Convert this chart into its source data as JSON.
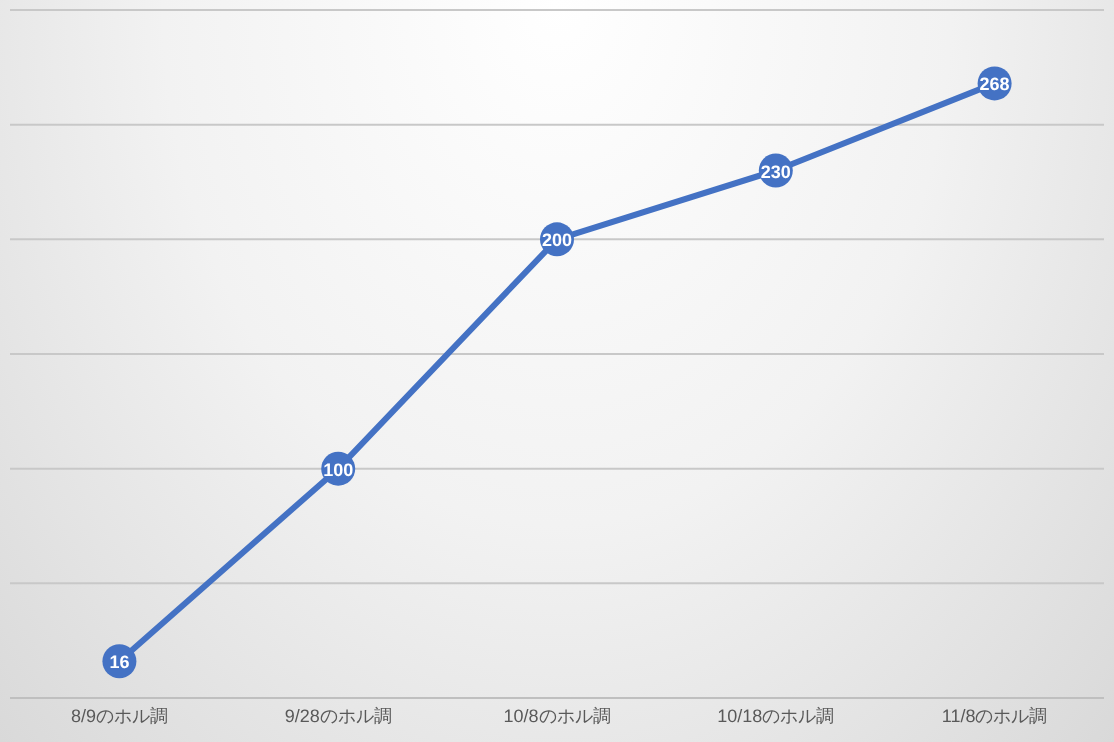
{
  "chart_data": {
    "type": "line",
    "categories": [
      "8/9のホル調",
      "9/28のホル調",
      "10/8のホル調",
      "10/18のホル調",
      "11/8のホル調"
    ],
    "series": [
      {
        "color": "#4472c4",
        "values": [
          16,
          100,
          200,
          230,
          268
        ]
      }
    ],
    "ylim": [
      0,
      300
    ],
    "yticks": [
      {
        "value": 0,
        "label": null
      },
      {
        "value": 50,
        "label": null
      },
      {
        "value": 100,
        "label": null
      },
      {
        "value": 150,
        "label": null
      },
      {
        "value": 200,
        "label": null
      },
      {
        "value": 250,
        "label": null
      },
      {
        "value": 300,
        "label": null
      }
    ],
    "tick_labels": "x",
    "grid": "y",
    "data_labels": true,
    "marker": "circle",
    "line_style": "solid"
  }
}
